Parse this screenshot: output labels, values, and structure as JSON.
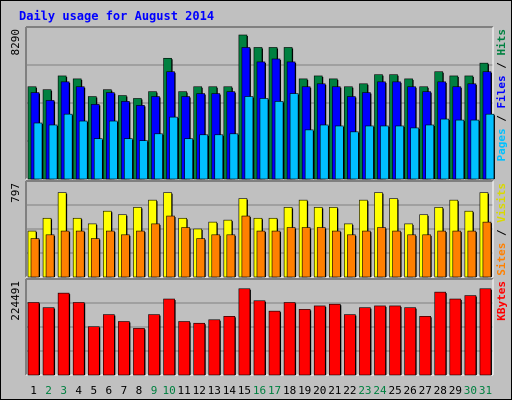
{
  "chart_data": {
    "type": "bar",
    "title": "Daily usage for August 2014",
    "categories": [
      "1",
      "2",
      "3",
      "4",
      "5",
      "6",
      "7",
      "8",
      "9",
      "10",
      "11",
      "12",
      "13",
      "14",
      "15",
      "16",
      "17",
      "18",
      "19",
      "20",
      "21",
      "22",
      "23",
      "24",
      "25",
      "26",
      "27",
      "28",
      "29",
      "30",
      "31"
    ],
    "weekend_days": [
      "2",
      "3",
      "9",
      "10",
      "16",
      "17",
      "23",
      "24",
      "30",
      "31"
    ],
    "panels": [
      {
        "id": "pages-files-hits",
        "max_label": "8290",
        "ymax": 8290,
        "series": [
          {
            "name": "Hits",
            "color": "#008040",
            "values": [
              5311,
              5141,
              5933,
              5763,
              4747,
              5141,
              4804,
              4635,
              5028,
              6950,
              5028,
              5311,
              5311,
              5311,
              8290,
              7572,
              7572,
              7572,
              5763,
              5933,
              5763,
              5311,
              5481,
              6006,
              6006,
              5763,
              5311,
              6176,
              5933,
              5933,
              6669
            ]
          },
          {
            "name": "Files",
            "color": "#0000ff",
            "values": [
              4974,
              4521,
              5593,
              5311,
              4294,
              4974,
              4465,
              4238,
              4747,
              6176,
              4747,
              4917,
              4917,
              5028,
              7572,
              6740,
              6910,
              6740,
              5311,
              5481,
              5311,
              4747,
              4974,
              5593,
              5593,
              5311,
              5028,
              5593,
              5311,
              5481,
              6176
            ]
          },
          {
            "name": "Pages",
            "color": "#00c0ff",
            "values": [
              3223,
              3110,
              3732,
              3336,
              2319,
              3336,
              2319,
              2205,
              2601,
              3562,
              2319,
              2545,
              2545,
              2601,
              4747,
              4635,
              4465,
              4917,
              2827,
              3110,
              3053,
              2714,
              3053,
              3053,
              3053,
              2940,
              3110,
              3450,
              3392,
              3392,
              3731
            ]
          }
        ],
        "legend": [
          "Pages",
          "Files",
          "Hits"
        ]
      },
      {
        "id": "sites-visits",
        "max_label": "797",
        "ymax": 797,
        "series": [
          {
            "name": "Visits",
            "color": "#ffff00",
            "values": [
              416,
              532,
              764,
              532,
              481,
              596,
              564,
              630,
              696,
              764,
              532,
              435,
              497,
              515,
              710,
              532,
              532,
              630,
              696,
              630,
              630,
              481,
              696,
              764,
              710,
              481,
              564,
              630,
              696,
              596,
              764
            ]
          },
          {
            "name": "Sites",
            "color": "#ff8000",
            "values": [
              348,
              382,
              416,
              416,
              348,
              416,
              382,
              416,
              481,
              552,
              448,
              348,
              382,
              382,
              552,
              416,
              416,
              448,
              448,
              448,
              416,
              382,
              416,
              448,
              416,
              382,
              382,
              416,
              416,
              416,
              497
            ]
          }
        ],
        "legend": [
          "Sites",
          "Visits"
        ]
      },
      {
        "id": "kbytes",
        "max_label": "224491",
        "ymax": 224491,
        "series": [
          {
            "name": "KBytes",
            "color": "#ff0000",
            "values": [
              185012,
              171800,
              208840,
              185012,
              123300,
              154100,
              136470,
              118900,
              154100,
              193800,
              136470,
              132040,
              140870,
              149700,
              220000,
              189400,
              162900,
              185012,
              167400,
              176200,
              180600,
              154100,
              171800,
              176200,
              176200,
              171800,
              149700,
              211400,
              193800,
              202600,
              220000
            ]
          }
        ],
        "legend": [
          "KBytes"
        ]
      }
    ],
    "grid": true
  }
}
